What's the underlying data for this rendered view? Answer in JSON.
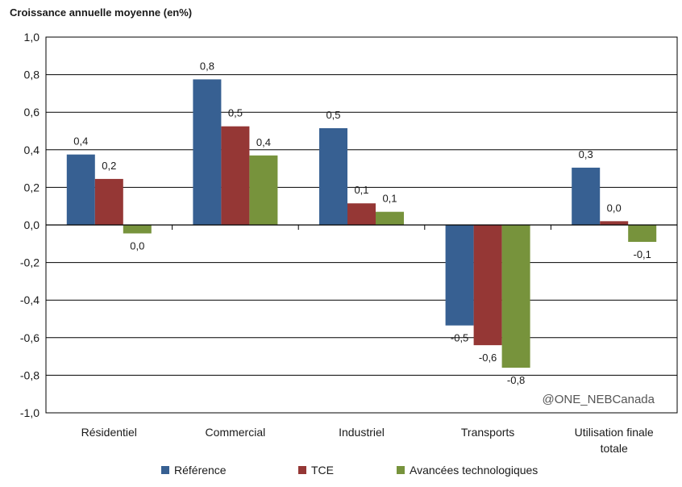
{
  "chart_data": {
    "type": "bar",
    "title": "Croissance annuelle moyenne (en%)",
    "categories": [
      "Résidentiel",
      "Commercial",
      "Industriel",
      "Transports",
      "Utilisation finale totale"
    ],
    "category_lines": [
      [
        "Résidentiel"
      ],
      [
        "Commercial"
      ],
      [
        "Industriel"
      ],
      [
        "Transports"
      ],
      [
        "Utilisation finale",
        "totale"
      ]
    ],
    "series": [
      {
        "name": "Référence",
        "color": "#376092",
        "values": [
          0.375,
          0.775,
          0.515,
          -0.535,
          0.305
        ],
        "labels": [
          "0,4",
          "0,8",
          "0,5",
          "-0,5",
          "0,3"
        ]
      },
      {
        "name": "TCE",
        "color": "#953735",
        "values": [
          0.245,
          0.525,
          0.115,
          -0.64,
          0.02
        ],
        "labels": [
          "0,2",
          "0,5",
          "0,1",
          "-0,6",
          "0,0"
        ]
      },
      {
        "name": "Avancées technologiques",
        "color": "#77933C",
        "values": [
          -0.045,
          0.37,
          0.07,
          -0.76,
          -0.09
        ],
        "labels": [
          "0,0",
          "0,4",
          "0,1",
          "-0,8",
          "-0,1"
        ]
      }
    ],
    "ylim": [
      -1.0,
      1.0
    ],
    "yticks": [
      1.0,
      0.8,
      0.6,
      0.4,
      0.2,
      0.0,
      -0.2,
      -0.4,
      -0.6,
      -0.8,
      -1.0
    ],
    "ytick_labels": [
      "1,0",
      "0,8",
      "0,6",
      "0,4",
      "0,2",
      "0,0",
      "-0,2",
      "-0,4",
      "-0,6",
      "-0,8",
      "-1,0"
    ],
    "xlabel": "",
    "ylabel": "",
    "grid": true,
    "legend_position": "bottom",
    "watermark": "@ONE_NEBCanada"
  }
}
